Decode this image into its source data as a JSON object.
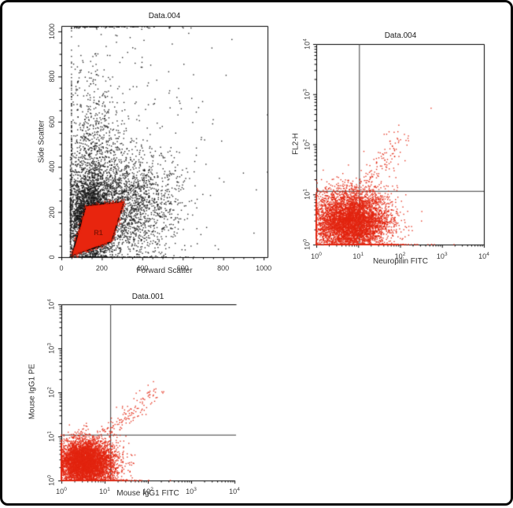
{
  "figure": {
    "background": "#ffffff",
    "border_color": "#050505",
    "dot_black": "#181818",
    "dot_red": "#e2250f",
    "quadrant_line_color": "#3a3a3a"
  },
  "chart_data": [
    {
      "id": "fsc-ssc",
      "type": "scatter",
      "title": "Data.004",
      "xlabel": "Forward Scatter",
      "ylabel": "Side Scatter",
      "xscale": "linear",
      "yscale": "linear",
      "xlim": [
        0,
        1019
      ],
      "ylim": [
        0,
        1024
      ],
      "xticks": {
        "values": [
          0,
          200,
          400,
          600,
          800,
          1000
        ],
        "labels": [
          "0",
          "200",
          "400",
          "600",
          "800",
          "1000"
        ],
        "minor_step": 50
      },
      "yticks": {
        "values": [
          0,
          200,
          400,
          600,
          800,
          1000
        ],
        "labels": [
          "0",
          "200",
          "400",
          "600",
          "800",
          "1000"
        ],
        "minor_step": 50
      },
      "dot_color": "#181818",
      "quadrant": null,
      "gate": {
        "label": "R1",
        "fill": "#e8250e",
        "outline": "#000000",
        "label_color": "#8a1404",
        "label_pos": [
          180,
          100
        ],
        "vertices": [
          [
            50,
            5
          ],
          [
            122,
            228
          ],
          [
            310,
            245
          ],
          [
            248,
            68
          ]
        ],
        "fringe_n": 240
      },
      "clusters": [
        {
          "type": "gauss",
          "n": 3200,
          "cx": 140,
          "cy": 150,
          "sx": 52,
          "sy": 95,
          "clampX": [
            45,
            1019
          ],
          "clampY": [
            0,
            1024
          ]
        },
        {
          "type": "gauss",
          "n": 2300,
          "cx": 300,
          "cy": 230,
          "sx": 135,
          "sy": 120,
          "clampX": [
            45,
            1019
          ],
          "clampY": [
            0,
            1024
          ]
        },
        {
          "type": "gauss",
          "n": 800,
          "cx": 150,
          "cy": 430,
          "sx": 65,
          "sy": 185,
          "clampX": [
            50,
            1019
          ],
          "clampY": [
            0,
            1010
          ]
        },
        {
          "type": "gauss",
          "n": 380,
          "cx": 250,
          "cy": 480,
          "sx": 260,
          "sy": 300,
          "clampX": [
            50,
            1019
          ],
          "clampY": [
            0,
            1015
          ]
        },
        {
          "type": "strip",
          "n": 85,
          "y0": 1020,
          "x0": 60,
          "sx": 200
        }
      ]
    },
    {
      "id": "neuropilin",
      "type": "scatter",
      "title": "Data.004",
      "xlabel": "Neuropilin FITC",
      "ylabel": "FL2-H",
      "xscale": "log",
      "yscale": "log",
      "xlim": [
        0,
        4
      ],
      "ylim": [
        0,
        4
      ],
      "xticks": {
        "values": [
          0,
          1,
          2,
          3,
          4
        ],
        "labels": [
          "10^0",
          "10^1",
          "10^2",
          "10^3",
          "10^4"
        ],
        "minor": "log"
      },
      "yticks": {
        "values": [
          0,
          1,
          2,
          3,
          4
        ],
        "labels": [
          "10^0",
          "10^1",
          "10^2",
          "10^3",
          "10^4"
        ],
        "minor": "log"
      },
      "dot_color": "#e2250f",
      "quadrant": {
        "x": 1.02,
        "y": 1.07
      },
      "gate": null,
      "clusters": [
        {
          "type": "gauss",
          "n": 6000,
          "cx": 0.82,
          "cy": 0.45,
          "sx": 0.45,
          "sy": 0.31,
          "clampX": [
            0,
            4
          ],
          "clampY": [
            0,
            4
          ]
        },
        {
          "type": "diag",
          "n": 120,
          "x0": 1.05,
          "y0": 1.0,
          "dx": 1.0,
          "dy": 1.15,
          "jx": 0.13,
          "jy": 0.15
        },
        {
          "type": "strip",
          "n": 80,
          "y0": 0,
          "x0": 1.3,
          "sx": 0.6
        },
        {
          "type": "points",
          "pts": [
            [
              2.74,
              2.72
            ],
            [
              1.62,
              2.2
            ]
          ]
        }
      ]
    },
    {
      "id": "igg1-control",
      "type": "scatter",
      "title": "Data.001",
      "xlabel": "Mouse IgG1 FITC",
      "ylabel": "Mouse IgG1 PE",
      "xscale": "log",
      "yscale": "log",
      "xlim": [
        0,
        4
      ],
      "ylim": [
        0,
        4
      ],
      "xticks": {
        "values": [
          0,
          1,
          2,
          3,
          4
        ],
        "labels": [
          "10^0",
          "10^1",
          "10^2",
          "10^3",
          "10^4"
        ],
        "minor": "log"
      },
      "yticks": {
        "values": [
          0,
          1,
          2,
          3,
          4
        ],
        "labels": [
          "10^0",
          "10^1",
          "10^2",
          "10^3",
          "10^4"
        ],
        "minor": "log"
      },
      "dot_color": "#e2250f",
      "quadrant": {
        "x": 1.13,
        "y": 1.04
      },
      "gate": null,
      "clusters": [
        {
          "type": "gauss",
          "n": 6000,
          "cx": 0.55,
          "cy": 0.38,
          "sx": 0.34,
          "sy": 0.27,
          "clampX": [
            0,
            4
          ],
          "clampY": [
            0,
            4
          ]
        },
        {
          "type": "diag",
          "n": 130,
          "x0": 0.95,
          "y0": 0.95,
          "dx": 1.25,
          "dy": 1.08,
          "jx": 0.11,
          "jy": 0.12
        },
        {
          "type": "strip",
          "n": 40,
          "y0": 0,
          "x0": 1.1,
          "sx": 0.4
        }
      ]
    }
  ]
}
